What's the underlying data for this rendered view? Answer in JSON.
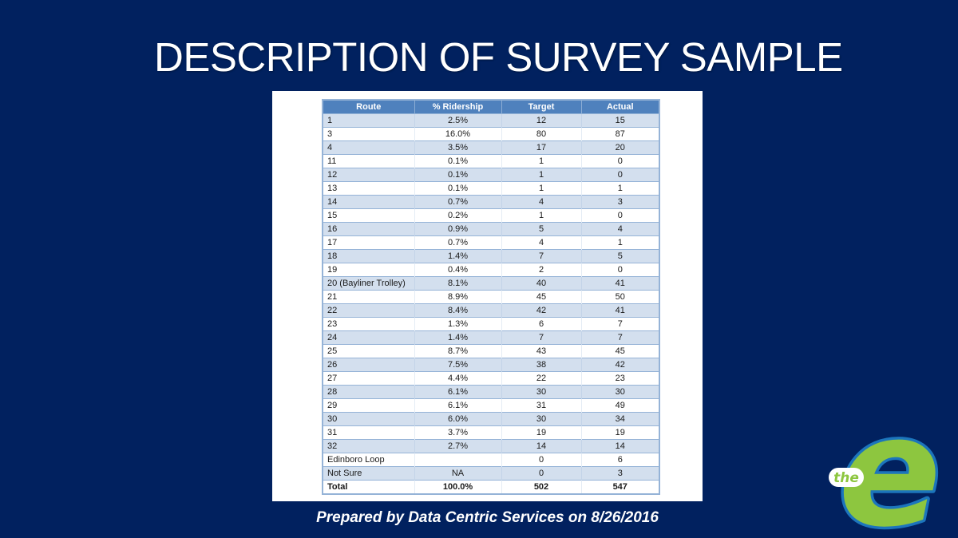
{
  "slide": {
    "title": "DESCRIPTION OF SURVEY SAMPLE",
    "footer": "Prepared by Data Centric Services on 8/26/2016",
    "background_color": "#01215F"
  },
  "table": {
    "headers": [
      "Route",
      "% Ridership",
      "Target",
      "Actual"
    ],
    "rows": [
      [
        "1",
        "2.5%",
        "12",
        "15"
      ],
      [
        "3",
        "16.0%",
        "80",
        "87"
      ],
      [
        "4",
        "3.5%",
        "17",
        "20"
      ],
      [
        "11",
        "0.1%",
        "1",
        "0"
      ],
      [
        "12",
        "0.1%",
        "1",
        "0"
      ],
      [
        "13",
        "0.1%",
        "1",
        "1"
      ],
      [
        "14",
        "0.7%",
        "4",
        "3"
      ],
      [
        "15",
        "0.2%",
        "1",
        "0"
      ],
      [
        "16",
        "0.9%",
        "5",
        "4"
      ],
      [
        "17",
        "0.7%",
        "4",
        "1"
      ],
      [
        "18",
        "1.4%",
        "7",
        "5"
      ],
      [
        "19",
        "0.4%",
        "2",
        "0"
      ],
      [
        "20 (Bayliner Trolley)",
        "8.1%",
        "40",
        "41"
      ],
      [
        "21",
        "8.9%",
        "45",
        "50"
      ],
      [
        "22",
        "8.4%",
        "42",
        "41"
      ],
      [
        "23",
        "1.3%",
        "6",
        "7"
      ],
      [
        "24",
        "1.4%",
        "7",
        "7"
      ],
      [
        "25",
        "8.7%",
        "43",
        "45"
      ],
      [
        "26",
        "7.5%",
        "38",
        "42"
      ],
      [
        "27",
        "4.4%",
        "22",
        "23"
      ],
      [
        "28",
        "6.1%",
        "30",
        "30"
      ],
      [
        "29",
        "6.1%",
        "31",
        "49"
      ],
      [
        "30",
        "6.0%",
        "30",
        "34"
      ],
      [
        "31",
        "3.7%",
        "19",
        "19"
      ],
      [
        "32",
        "2.7%",
        "14",
        "14"
      ],
      [
        "Edinboro Loop",
        "",
        "0",
        "6"
      ],
      [
        "Not Sure",
        "NA",
        "0",
        "3"
      ]
    ],
    "total": [
      "Total",
      "100.0%",
      "502",
      "547"
    ],
    "colors": {
      "header_bg": "#4F81BD",
      "band_bg": "#D3DFEE",
      "border": "#95B3D7"
    }
  },
  "logo": {
    "the": "the",
    "e": "e",
    "green": "#8DC63F",
    "blue": "#1C75BC",
    "white": "#FFFFFF"
  }
}
